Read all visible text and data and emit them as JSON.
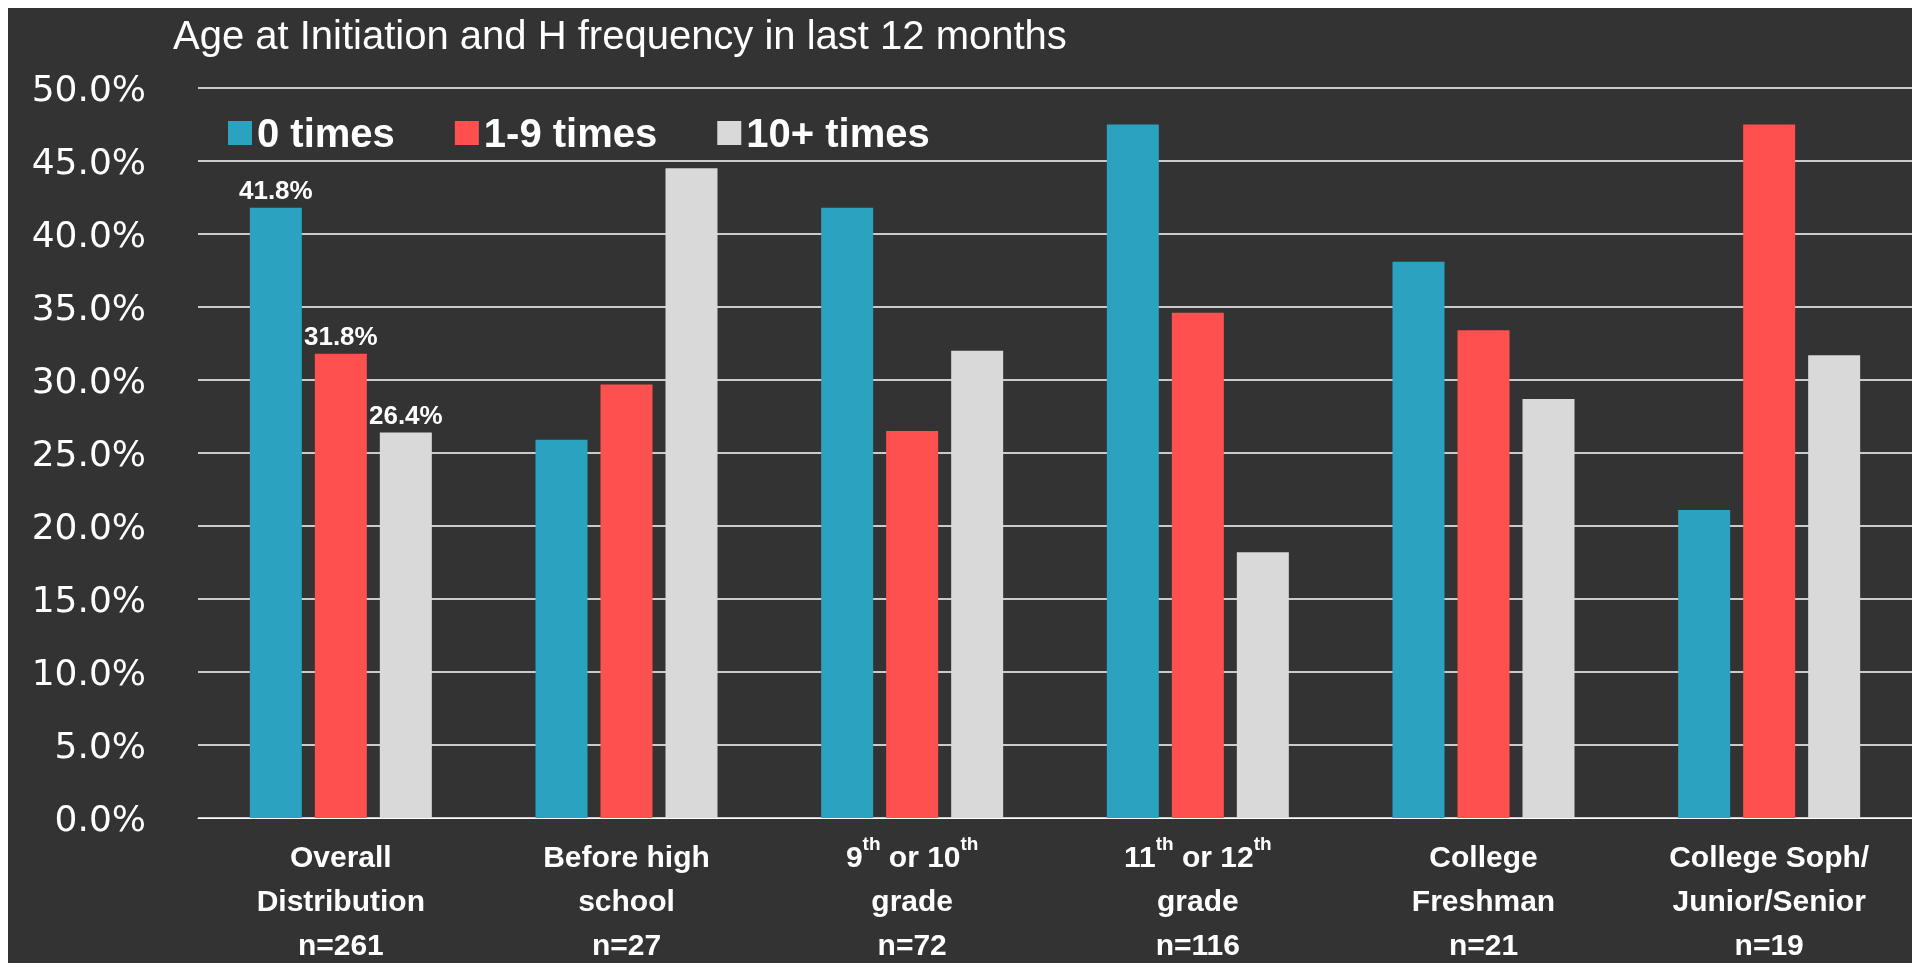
{
  "chart_data": {
    "type": "bar",
    "title": "Age at Initiation and H frequency in last 12 months",
    "categories": [
      "Overall\nDistribution\nn=261",
      "Before high\nschool\nn=27",
      "9$^{th}$ or 10$^{th}$\ngrade\nn=72",
      "11$^{th}$ or 12$^{th}$\ngrade\nn=116",
      "College\nFreshman\nn=21",
      "College Soph/\nJunior/Senior\nn=19"
    ],
    "series": [
      {
        "name": "0 times",
        "color": "#2ba3c0",
        "values": [
          41.8,
          25.9,
          41.8,
          47.5,
          38.1,
          21.1
        ],
        "value_labels": [
          "41.8%",
          null,
          null,
          null,
          null,
          null
        ]
      },
      {
        "name": "1-9 times",
        "color": "#ff5050",
        "values": [
          31.8,
          29.7,
          26.5,
          34.6,
          33.4,
          47.5
        ],
        "value_labels": [
          "31.8%",
          null,
          null,
          null,
          null,
          null
        ]
      },
      {
        "name": "10+ times",
        "color": "#d9d9d9",
        "values": [
          26.4,
          44.5,
          32.0,
          18.2,
          28.7,
          31.7
        ],
        "value_labels": [
          "26.4%",
          null,
          null,
          null,
          null,
          null
        ]
      }
    ],
    "ylim": [
      0,
      50
    ],
    "yticks": [
      {
        "value": 0,
        "label": "0.0%"
      },
      {
        "value": 5,
        "label": "5.0%"
      },
      {
        "value": 10,
        "label": "10.0%"
      },
      {
        "value": 15,
        "label": "15.0%"
      },
      {
        "value": 20,
        "label": "20.0%"
      },
      {
        "value": 25,
        "label": "25.0%"
      },
      {
        "value": 30,
        "label": "30.0%"
      },
      {
        "value": 35,
        "label": "35.0%"
      },
      {
        "value": 40,
        "label": "40.0%"
      },
      {
        "value": 45,
        "label": "45.0%"
      },
      {
        "value": 50,
        "label": "50.0%"
      }
    ],
    "grid": "y",
    "legend": "top left"
  }
}
